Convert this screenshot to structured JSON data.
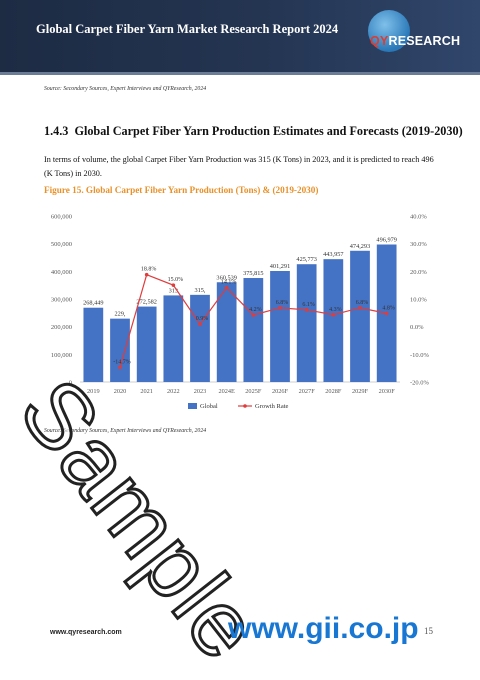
{
  "header": {
    "title": "Global Carpet Fiber Yarn Market Research Report 2024",
    "logo_text_accent": "QY",
    "logo_text_rest": "RESEARCH"
  },
  "source_top": "Source: Secondary Sources, Expert Interviews and QYResearch, 2024",
  "section": {
    "number": "1.4.3",
    "title": "Global Carpet Fiber Yarn Production Estimates and Forecasts (2019-2030)"
  },
  "paragraph": "In terms of volume, the global Carpet Fiber Yarn Production was 315 (K Tons) in 2023, and it is predicted to reach 496 (K Tons) in 2030.",
  "figure_caption": "Figure 15.   Global Carpet Fiber Yarn Production (Tons) & (2019-2030)",
  "chart_data": {
    "type": "bar",
    "categories": [
      "2019",
      "2020",
      "2021",
      "2022",
      "2023",
      "2024E",
      "2025F",
      "2026F",
      "2027F",
      "2028F",
      "2029F",
      "2030F"
    ],
    "series": [
      {
        "name": "Global",
        "type": "bar",
        "color": "#4472c4",
        "values": [
          268449,
          229000,
          272582,
          313000,
          315000,
          360539,
          375815,
          401291,
          425773,
          443957,
          474293,
          496979
        ],
        "labels": [
          "268,449",
          "229,",
          "272,582",
          "313",
          "315,",
          "360,539",
          "375,815",
          "401,291",
          "425,773",
          "443,957",
          "474,293",
          "496,979"
        ]
      },
      {
        "name": "Growth Rate",
        "type": "line",
        "color": "#e03c3c",
        "values": [
          null,
          -14.7,
          18.8,
          15.0,
          0.9,
          14.1,
          4.2,
          6.8,
          6.1,
          4.3,
          6.8,
          4.8
        ],
        "labels": [
          "",
          "-14.7%",
          "18.8%",
          "15.0%",
          "0.9%",
          "14.1%",
          "4.2%",
          "6.8%",
          "6.1%",
          "4.3%",
          "6.8%",
          "4.8%"
        ]
      }
    ],
    "ylim": [
      0,
      600000
    ],
    "y_ticks": [
      "0",
      "100,000",
      "200,000",
      "300,000",
      "400,000",
      "500,000",
      "600,000"
    ],
    "y2lim": [
      -20,
      40
    ],
    "y2_ticks": [
      "-20.0%",
      "-10.0%",
      "0.0%",
      "10.0%",
      "20.0%",
      "30.0%",
      "40.0%"
    ],
    "legend_position": "bottom",
    "grid": false
  },
  "source_bottom": "Source: Secondary Sources, Expert Interviews and QYResearch, 2024",
  "footer": {
    "url": "www.qyresearch.com",
    "page": "15"
  },
  "watermark": "Sample",
  "overlay_url": "www.gii.co.jp"
}
